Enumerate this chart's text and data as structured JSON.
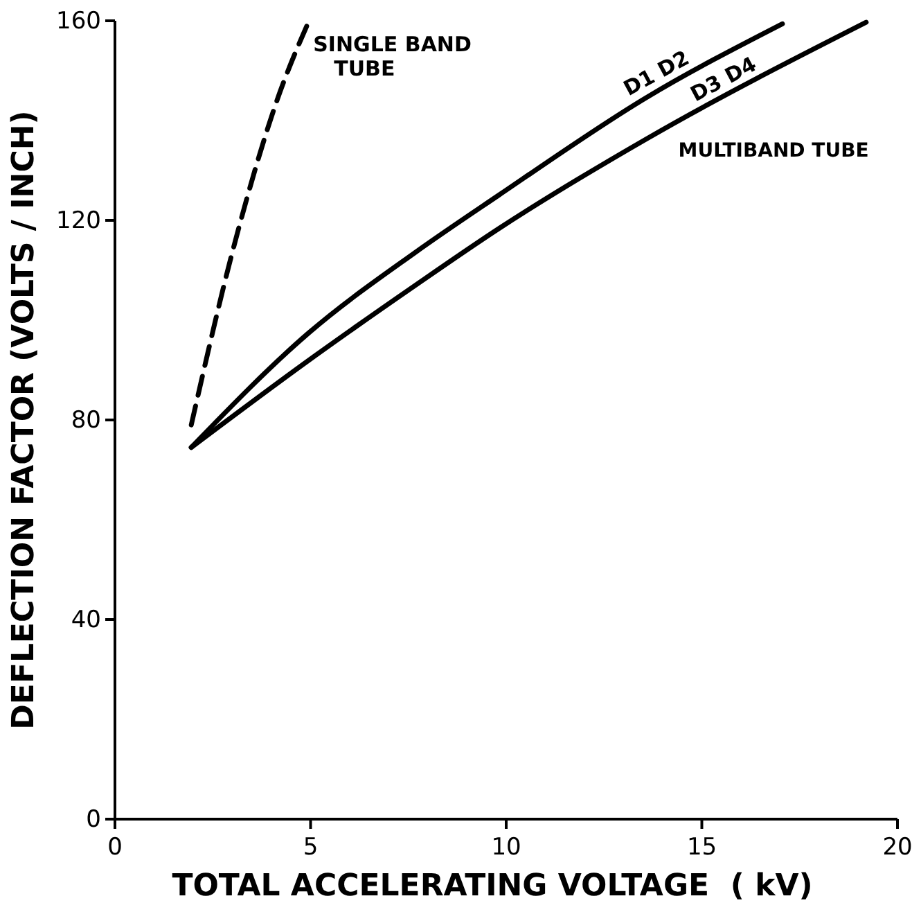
{
  "chart_data": {
    "type": "line",
    "xlabel": "TOTAL ACCELERATING VOLTAGE  ( kV)",
    "ylabel": "DEFLECTION FACTOR (VOLTS / INCH)",
    "xlim": [
      0,
      20
    ],
    "xticks": [
      0,
      5,
      10,
      15,
      20
    ],
    "ylim": [
      0,
      160
    ],
    "yticks": [
      0,
      40,
      80,
      120,
      160
    ],
    "grid": false,
    "marker": "none",
    "series": [
      {
        "name": "SINGLE BAND TUBE",
        "color": "#000000",
        "line_style": "dashed",
        "x": [
          1.95,
          3.08,
          4.14,
          4.96
        ],
        "values": [
          79,
          116,
          144,
          160
        ]
      },
      {
        "name": "D1 D2",
        "color": "#000000",
        "line_style": "solid",
        "x": [
          1.95,
          4.96,
          7.68,
          9.8,
          13.6,
          17.06
        ],
        "values": [
          74.5,
          97.5,
          113.6,
          125,
          144.7,
          159.4
        ]
      },
      {
        "name": "D3 D4",
        "color": "#000000",
        "line_style": "solid",
        "x": [
          1.95,
          4.96,
          7.68,
          9.8,
          13.6,
          19.2
        ],
        "values": [
          74.5,
          92,
          107,
          118.3,
          136.4,
          159.7
        ]
      }
    ],
    "annotations": [
      "MULTIBAND TUBE"
    ]
  }
}
